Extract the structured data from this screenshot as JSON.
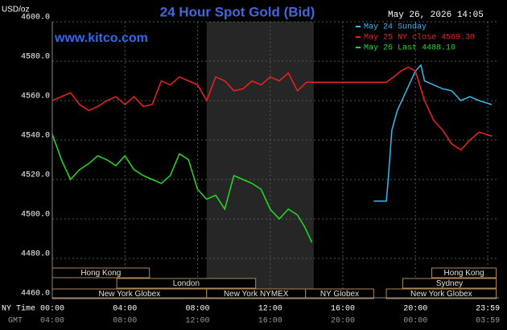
{
  "chart_data": {
    "type": "line",
    "title": "24 Hour Spot Gold (Bid)",
    "y_unit": "USD/oz",
    "site": "www.kitco.com",
    "timestamp": "May 26, 2026 14:05",
    "xlim": [
      0,
      24.6
    ],
    "ylim": [
      4460,
      4600
    ],
    "yticks": [
      {
        "value": 4460,
        "label": "4460.0"
      },
      {
        "value": 4480,
        "label": "4480.0"
      },
      {
        "value": 4500,
        "label": "4500.0"
      },
      {
        "value": 4520,
        "label": "4520.0"
      },
      {
        "value": 4540,
        "label": "4540.0"
      },
      {
        "value": 4560,
        "label": "4560.0"
      },
      {
        "value": 4580,
        "label": "4580.0"
      },
      {
        "value": 4600,
        "label": "4600.0"
      }
    ],
    "xticks": [
      {
        "value": 0,
        "label": "00:00"
      },
      {
        "value": 4,
        "label": "04:00"
      },
      {
        "value": 8,
        "label": "08:00"
      },
      {
        "value": 12,
        "label": "12:00"
      },
      {
        "value": 16,
        "label": "16:00"
      },
      {
        "value": 20,
        "label": "20:00"
      },
      {
        "value": 23.983,
        "label": "23:59"
      }
    ],
    "gmt_labels": [
      "04:00",
      "08:00",
      "12:00",
      "16:00",
      "20:00",
      "00:00",
      "03:59"
    ],
    "x_row_labels": [
      "NY Time",
      "GMT"
    ],
    "grid": true,
    "shaded_range": [
      8.5,
      14.4
    ],
    "sessions": [
      [
        {
          "label": "Hong Kong",
          "start": 0,
          "end": 5.35
        },
        {
          "label": "Hong Kong",
          "start": 20.9,
          "end": 24.45
        }
      ],
      [
        {
          "label": "London",
          "start": 3.55,
          "end": 11.2
        },
        {
          "label": "Sydney",
          "start": 19.3,
          "end": 24.45
        }
      ],
      [
        {
          "label": "New York Globex",
          "start": 0,
          "end": 8.5
        },
        {
          "label": "New York NYMEX",
          "start": 8.5,
          "end": 13.95
        },
        {
          "label": "NY Globex",
          "start": 13.95,
          "end": 17.7
        },
        {
          "label": "New York Globex",
          "start": 18.4,
          "end": 24.45
        }
      ]
    ],
    "series": [
      {
        "name": "May 24 Sunday",
        "color": "#33bbee",
        "x": [
          17.7,
          18.4,
          18.5,
          18.7,
          19,
          19.5,
          20,
          20.3,
          20.5,
          21,
          21.5,
          22,
          22.5,
          23,
          23.5,
          24.2
        ],
        "values": [
          4509,
          4509,
          4520,
          4545,
          4555,
          4565,
          4575,
          4578,
          4570,
          4568,
          4566,
          4565,
          4560,
          4562,
          4560,
          4558
        ]
      },
      {
        "name": "May 25 NY close 4569.30",
        "color": "#ee2222",
        "x": [
          0,
          0.5,
          1,
          1.5,
          2,
          2.5,
          3,
          3.5,
          4,
          4.5,
          5,
          5.5,
          6,
          6.5,
          7,
          7.5,
          8,
          8.5,
          9,
          9.5,
          10,
          10.5,
          11,
          11.5,
          12,
          12.5,
          13,
          13.5,
          14,
          16,
          18.4,
          18.8,
          19.2,
          19.6,
          20,
          20.5,
          21,
          21.5,
          22,
          22.5,
          23,
          23.5,
          24.2
        ],
        "values": [
          4560,
          4562,
          4564,
          4558,
          4555,
          4557,
          4560,
          4562,
          4558,
          4562,
          4557,
          4558,
          4570,
          4568,
          4572,
          4570,
          4568,
          4560,
          4572,
          4570,
          4565,
          4566,
          4570,
          4568,
          4572,
          4570,
          4574,
          4565,
          4569.3,
          4569.3,
          4569.3,
          4572,
          4575,
          4577,
          4575,
          4560,
          4550,
          4545,
          4538,
          4535,
          4540,
          4544,
          4542
        ]
      },
      {
        "name": "May 26 Last 4488.10",
        "color": "#22dd22",
        "x": [
          0,
          0.5,
          1,
          1.5,
          2,
          2.5,
          3,
          3.5,
          4,
          4.5,
          5,
          5.5,
          6,
          6.5,
          7,
          7.5,
          8,
          8.5,
          9,
          9.5,
          10,
          10.5,
          11,
          11.5,
          12,
          12.5,
          13,
          13.5,
          13.9,
          14.3
        ],
        "values": [
          4543,
          4530,
          4520,
          4525,
          4528,
          4532,
          4530,
          4527,
          4532,
          4525,
          4522,
          4520,
          4518,
          4522,
          4533,
          4530,
          4515,
          4510,
          4512,
          4505,
          4522,
          4520,
          4518,
          4515,
          4505,
          4500,
          4505,
          4502,
          4496,
          4488.1
        ]
      }
    ]
  }
}
